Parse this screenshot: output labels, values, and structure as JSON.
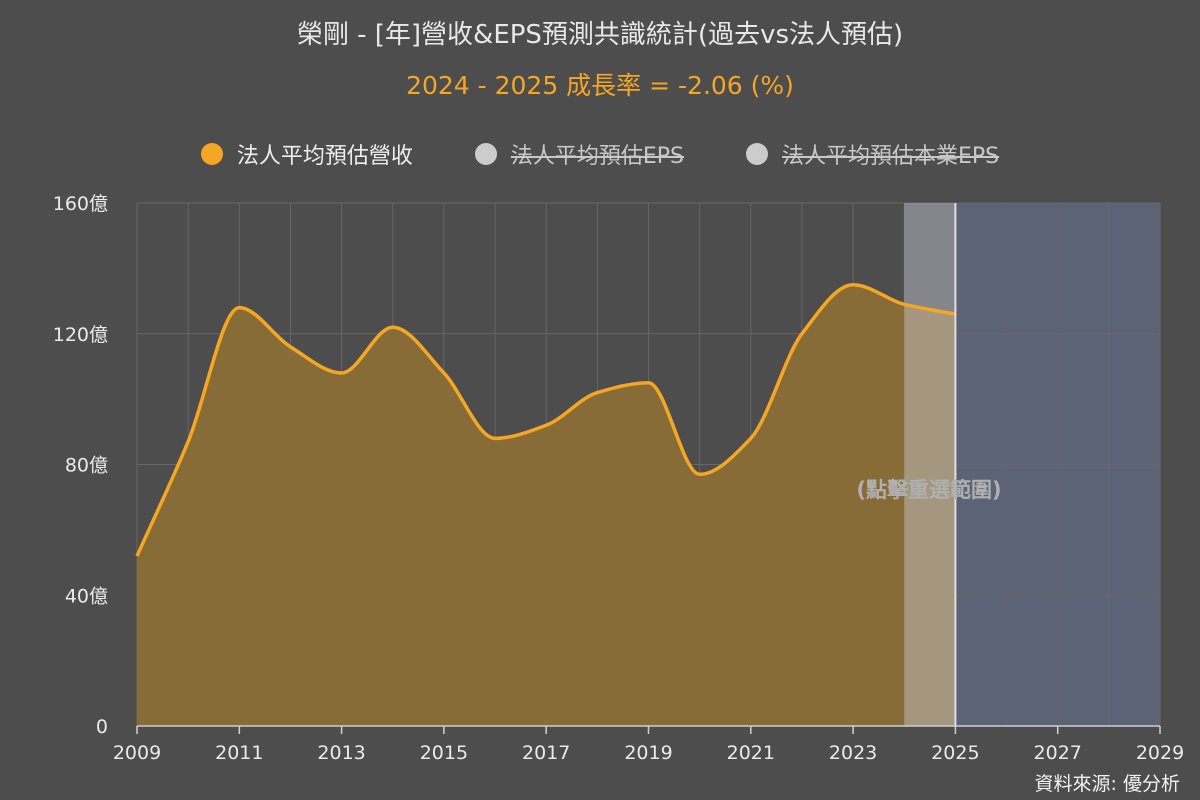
{
  "header": {
    "title": "榮剛 - [年]營收&EPS預測共識統計(過去vs法人預估)",
    "subtitle": "2024 - 2025 成長率 = -2.06 (%)"
  },
  "legend": [
    {
      "label": "法人平均預估營收",
      "color": "#f5a623",
      "active": true
    },
    {
      "label": "法人平均預估EPS",
      "color": "#cccccc",
      "active": false
    },
    {
      "label": "法人平均預估本業EPS",
      "color": "#cccccc",
      "active": false
    }
  ],
  "overlay_text": "(點擊重選範圍)",
  "source": "資料來源: 優分析",
  "colors": {
    "background": "#4d4d4d",
    "series": "#f5a623",
    "area": "#886c38",
    "forecast_band": "#5c6377",
    "selected_band": "#878b99"
  },
  "chart_data": {
    "type": "area",
    "x": [
      2009,
      2010,
      2011,
      2012,
      2013,
      2014,
      2015,
      2016,
      2017,
      2018,
      2019,
      2020,
      2021,
      2022,
      2023,
      2024,
      2025
    ],
    "series": [
      {
        "name": "法人平均預估營收",
        "values": [
          52,
          87,
          128,
          116,
          108,
          122,
          108,
          88,
          92,
          102,
          105,
          77,
          88,
          120,
          135,
          129,
          126
        ]
      }
    ],
    "x_ticks": [
      "2009",
      "2011",
      "2013",
      "2015",
      "2017",
      "2019",
      "2021",
      "2023",
      "2025",
      "2027",
      "2029"
    ],
    "xlim": [
      2009,
      2029
    ],
    "ylim": [
      0,
      160
    ],
    "y_ticks": [
      "0",
      "40億",
      "80億",
      "120億",
      "160億"
    ],
    "y_tick_values": [
      0,
      40,
      80,
      120,
      160
    ],
    "forecast_start": 2025,
    "selected_range": [
      2024,
      2025
    ],
    "grid": true
  }
}
